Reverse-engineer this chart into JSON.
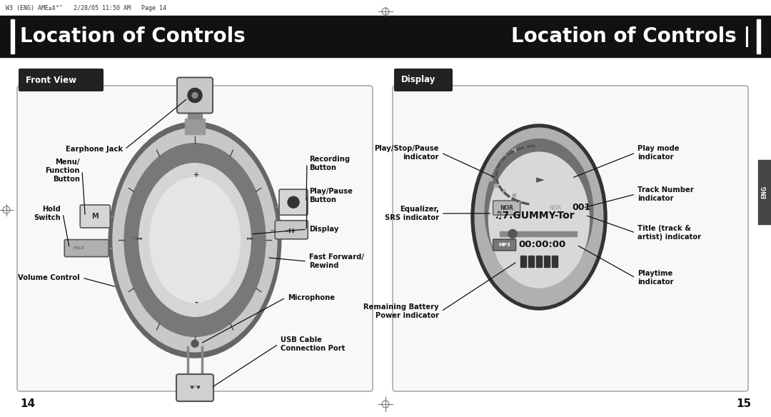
{
  "bg_color": "#ffffff",
  "top_bar_color": "#000000",
  "header_bar_color": "#111111",
  "header_text": "Location of Controls",
  "header_text_color": "#ffffff",
  "page_num_left": "14",
  "page_num_right": "15",
  "tab_color": "#1a1a1a",
  "tab_text_color": "#ffffff",
  "panel_border": "#aaaaaa",
  "panel_face": "#f5f5f5",
  "accent_color": "#555555",
  "label_fontsize": 7.2,
  "label_color": "#111111",
  "label_fontweight": "bold"
}
